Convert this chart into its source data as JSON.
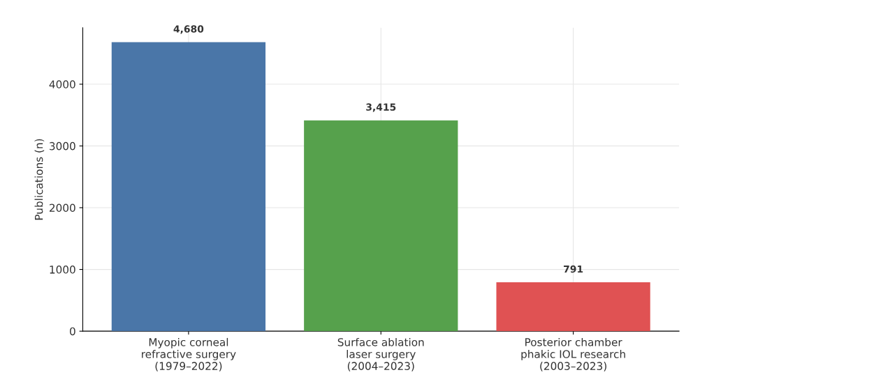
{
  "chart_data": {
    "type": "bar",
    "ylabel": "Publications (n)",
    "categories": [
      "Myopic corneal\nrefractive surgery\n(1979–2022)",
      "Surface ablation\nlaser surgery\n(2004–2023)",
      "Posterior chamber\nphakic IOL research\n(2003–2023)"
    ],
    "values": [
      4680,
      3415,
      791
    ],
    "colors": [
      "#4a76a8",
      "#56a14c",
      "#e05253"
    ],
    "value_labels": [
      "4,680",
      "3,415",
      "791"
    ],
    "ylim": [
      0,
      4914
    ],
    "yticks": [
      0,
      1000,
      2000,
      3000,
      4000
    ],
    "grid": true
  }
}
